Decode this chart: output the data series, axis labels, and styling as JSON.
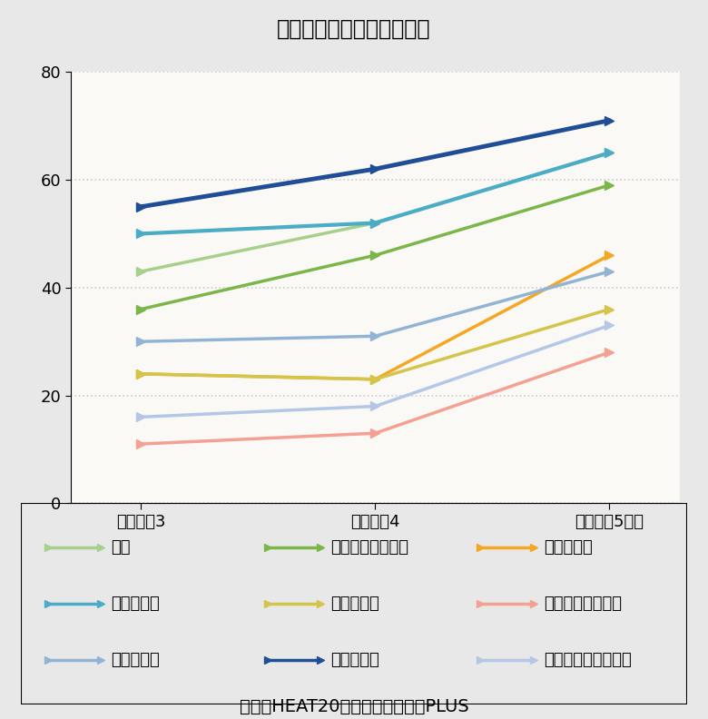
{
  "title": "断熱化による病気の改善率",
  "xlabel_ticks": [
    "グレード3",
    "グレード4",
    "グレード5以上"
  ],
  "ylabel_label": "%",
  "ylim": [
    0,
    80
  ],
  "yticks": [
    0,
    20,
    40,
    60,
    80
  ],
  "source_text": "出典：HEAT20設計ガイドブックPLUS",
  "series": [
    {
      "label": "せき",
      "color": "#a8d08d",
      "values": [
        43,
        52,
        65
      ],
      "linewidth": 2.5,
      "marker": ">"
    },
    {
      "label": "アトビー性皮膚炎",
      "color": "#7ab648",
      "values": [
        36,
        46,
        59
      ],
      "linewidth": 2.5,
      "marker": ">"
    },
    {
      "label": "手足の冷え",
      "color": "#f5a623",
      "values": [
        24,
        23,
        46
      ],
      "linewidth": 2.5,
      "marker": ">"
    },
    {
      "label": "のどの痛み",
      "color": "#4bacc6",
      "values": [
        50,
        52,
        65
      ],
      "linewidth": 3.0,
      "marker": ">"
    },
    {
      "label": "目のかゆみ",
      "color": "#d4c44a",
      "values": [
        24,
        23,
        36
      ],
      "linewidth": 2.5,
      "marker": ">"
    },
    {
      "label": "アレルギー性鼻炎",
      "color": "#f4a093",
      "values": [
        11,
        13,
        28
      ],
      "linewidth": 2.5,
      "marker": ">"
    },
    {
      "label": "肌のかゆみ",
      "color": "#92b4d4",
      "values": [
        30,
        31,
        43
      ],
      "linewidth": 2.5,
      "marker": ">"
    },
    {
      "label": "気管支喘息",
      "color": "#1f4e96",
      "values": [
        55,
        62,
        71
      ],
      "linewidth": 3.5,
      "marker": ">"
    },
    {
      "label": "アレルギー性結膜炎",
      "color": "#b4c7e7",
      "values": [
        16,
        18,
        33
      ],
      "linewidth": 2.5,
      "marker": ">"
    }
  ],
  "background_color": "#faf9f5",
  "plot_bg_color": "#faf9f5",
  "outer_bg_color": "#e8e8e8",
  "title_bg_color": "#d0d0d0",
  "legend_ncol": 3,
  "grid_color": "#cccccc",
  "title_fontsize": 17,
  "tick_fontsize": 13,
  "legend_fontsize": 13,
  "source_fontsize": 14
}
